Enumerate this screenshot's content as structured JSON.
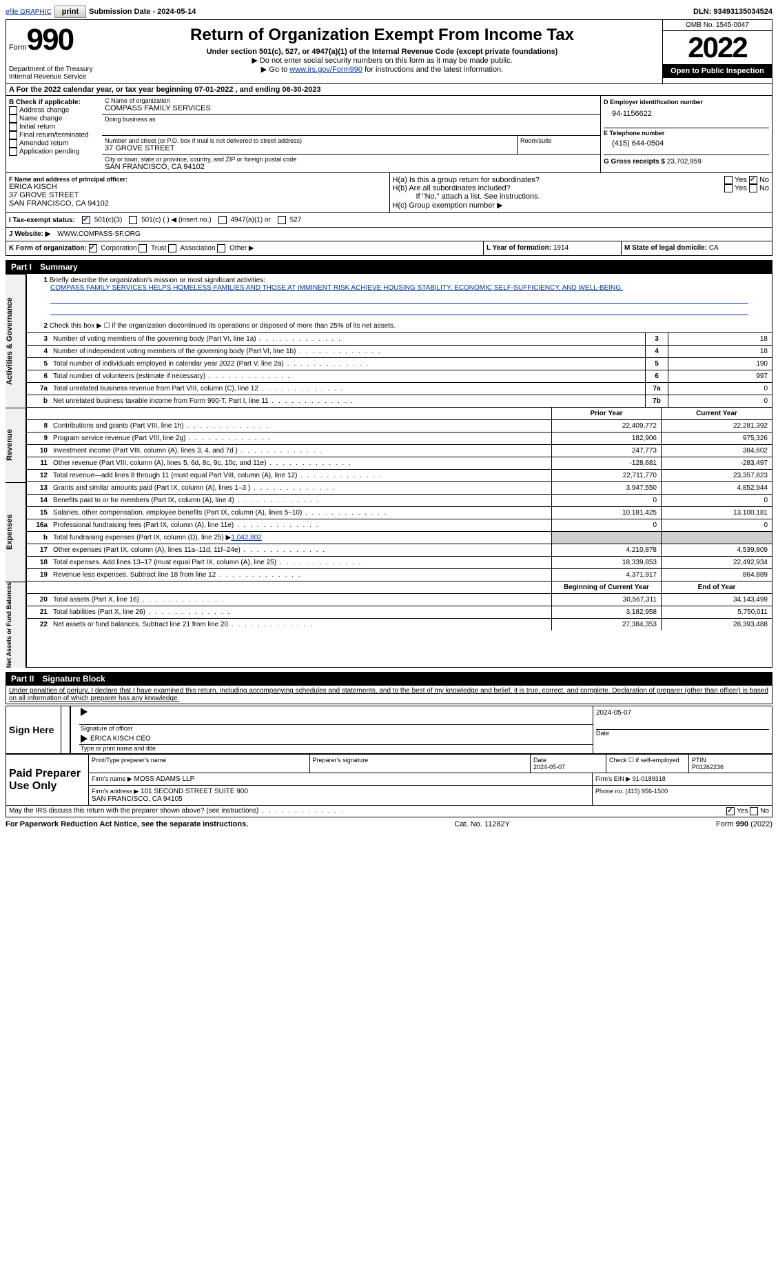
{
  "topbar": {
    "efile": "efile GRAPHIC",
    "print": "print",
    "subDate": "Submission Date - 2024-05-14",
    "dln": "DLN: 93493135034524"
  },
  "hdr": {
    "formWord": "Form",
    "formNum": "990",
    "dept": "Department of the Treasury\nInternal Revenue Service",
    "title": "Return of Organization Exempt From Income Tax",
    "sub": "Under section 501(c), 527, or 4947(a)(1) of the Internal Revenue Code (except private foundations)",
    "note1": "▶ Do not enter social security numbers on this form as it may be made public.",
    "note2": "▶ Go to ",
    "note2link": "www.irs.gov/Form990",
    "note2b": " for instructions and the latest information.",
    "omb": "OMB No. 1545-0047",
    "year": "2022",
    "open": "Open to Public Inspection"
  },
  "A": {
    "text": "A For the 2022 calendar year, or tax year beginning 07-01-2022     , and ending 06-30-2023"
  },
  "B": {
    "title": "B Check if applicable:",
    "items": [
      "Address change",
      "Name change",
      "Initial return",
      "Final return/terminated",
      "Amended return",
      "Application pending"
    ]
  },
  "C": {
    "nameLbl": "C Name of organization",
    "name": "COMPASS FAMILY SERVICES",
    "dbaLbl": "Doing business as",
    "dba": "",
    "addrLbl": "Number and street (or P.O. box if mail is not delivered to street address)",
    "addr": "37 GROVE STREET",
    "roomLbl": "Room/suite",
    "room": "",
    "cityLbl": "City or town, state or province, country, and ZIP or foreign postal code",
    "city": "SAN FRANCISCO, CA  94102"
  },
  "D": {
    "lbl": "D Employer identification number",
    "val": "94-1156622"
  },
  "E": {
    "lbl": "E Telephone number",
    "val": "(415) 644-0504"
  },
  "G": {
    "lbl": "G Gross receipts $",
    "val": "23,702,959"
  },
  "F": {
    "lbl": "F  Name and address of principal officer:",
    "name": "ERICA KISCH",
    "addr": "37 GROVE STREET",
    "city": "SAN FRANCISCO, CA  94102"
  },
  "H": {
    "a": "H(a)  Is this a group return for subordinates?",
    "aNo": true,
    "b": "H(b)  Are all subordinates included?",
    "bnote": "If \"No,\" attach a list. See instructions.",
    "c": "H(c)  Group exemption number ▶"
  },
  "I": {
    "lbl": "I    Tax-exempt status:",
    "c1": "501(c)(3)",
    "c2": "501(c) (   ) ◀ (insert no.)",
    "c3": "4947(a)(1) or",
    "c4": "527"
  },
  "J": {
    "lbl": "J    Website: ▶",
    "val": "WWW.COMPASS-SF.ORG"
  },
  "K": {
    "lbl": "K Form of organization:",
    "c1": "Corporation",
    "c2": "Trust",
    "c3": "Association",
    "c4": "Other ▶"
  },
  "L": {
    "lbl": "L Year of formation:",
    "val": "1914"
  },
  "M": {
    "lbl": "M State of legal domicile:",
    "val": "CA"
  },
  "partI": {
    "label": "Part I",
    "title": "Summary"
  },
  "p1": {
    "l1lbl": "Briefly describe the organization's mission or most significant activities:",
    "l1val": "COMPASS FAMILY SERVICES HELPS HOMELESS FAMILIES AND THOSE AT IMMINENT RISK ACHIEVE HOUSING STABILITY, ECONOMIC SELF-SUFFICIENCY, AND WELL-BEING.",
    "l2": "Check this box ▶ ☐  if the organization discontinued its operations or disposed of more than 25% of its net assets.",
    "rows": [
      {
        "n": "3",
        "t": "Number of voting members of the governing body (Part VI, line 1a)",
        "b": "3",
        "v": "18"
      },
      {
        "n": "4",
        "t": "Number of independent voting members of the governing body (Part VI, line 1b)",
        "b": "4",
        "v": "18"
      },
      {
        "n": "5",
        "t": "Total number of individuals employed in calendar year 2022 (Part V, line 2a)",
        "b": "5",
        "v": "190"
      },
      {
        "n": "6",
        "t": "Total number of volunteers (estimate if necessary)",
        "b": "6",
        "v": "997"
      },
      {
        "n": "7a",
        "t": "Total unrelated business revenue from Part VIII, column (C), line 12",
        "b": "7a",
        "v": "0"
      },
      {
        "n": "b",
        "t": "Net unrelated business taxable income from Form 990-T, Part I, line 11",
        "b": "7b",
        "v": "0"
      }
    ],
    "hdrPrior": "Prior Year",
    "hdrCurr": "Current Year",
    "rev": [
      {
        "n": "8",
        "t": "Contributions and grants (Part VIII, line 1h)",
        "p": "22,409,772",
        "c": "22,281,392"
      },
      {
        "n": "9",
        "t": "Program service revenue (Part VIII, line 2g)",
        "p": "182,906",
        "c": "975,326"
      },
      {
        "n": "10",
        "t": "Investment income (Part VIII, column (A), lines 3, 4, and 7d )",
        "p": "247,773",
        "c": "384,602"
      },
      {
        "n": "11",
        "t": "Other revenue (Part VIII, column (A), lines 5, 6d, 8c, 9c, 10c, and 11e)",
        "p": "-128,681",
        "c": "-283,497"
      },
      {
        "n": "12",
        "t": "Total revenue—add lines 8 through 11 (must equal Part VIII, column (A), line 12)",
        "p": "22,711,770",
        "c": "23,357,823"
      }
    ],
    "exp": [
      {
        "n": "13",
        "t": "Grants and similar amounts paid (Part IX, column (A), lines 1–3 )",
        "p": "3,947,550",
        "c": "4,852,944"
      },
      {
        "n": "14",
        "t": "Benefits paid to or for members (Part IX, column (A), line 4)",
        "p": "0",
        "c": "0"
      },
      {
        "n": "15",
        "t": "Salaries, other compensation, employee benefits (Part IX, column (A), lines 5–10)",
        "p": "10,181,425",
        "c": "13,100,181"
      },
      {
        "n": "16a",
        "t": "Professional fundraising fees (Part IX, column (A), line 11e)",
        "p": "0",
        "c": "0"
      },
      {
        "n": "b",
        "t": "Total fundraising expenses (Part IX, column (D), line 25) ▶",
        "p": "grey",
        "c": "grey",
        "extra": "1,042,802"
      },
      {
        "n": "17",
        "t": "Other expenses (Part IX, column (A), lines 11a–11d, 11f–24e)",
        "p": "4,210,878",
        "c": "4,539,809"
      },
      {
        "n": "18",
        "t": "Total expenses. Add lines 13–17 (must equal Part IX, column (A), line 25)",
        "p": "18,339,853",
        "c": "22,492,934"
      },
      {
        "n": "19",
        "t": "Revenue less expenses. Subtract line 18 from line 12",
        "p": "4,371,917",
        "c": "864,889"
      }
    ],
    "hdrBeg": "Beginning of Current Year",
    "hdrEnd": "End of Year",
    "net": [
      {
        "n": "20",
        "t": "Total assets (Part X, line 16)",
        "p": "30,567,311",
        "c": "34,143,499"
      },
      {
        "n": "21",
        "t": "Total liabilities (Part X, line 26)",
        "p": "3,182,958",
        "c": "5,750,011"
      },
      {
        "n": "22",
        "t": "Net assets or fund balances. Subtract line 21 from line 20",
        "p": "27,384,353",
        "c": "28,393,488"
      }
    ],
    "tabs": [
      "Activities & Governance",
      "Revenue",
      "Expenses",
      "Net Assets or Fund Balances"
    ]
  },
  "partII": {
    "label": "Part II",
    "title": "Signature Block"
  },
  "perjury": "Under penalties of perjury, I declare that I have examined this return, including accompanying schedules and statements, and to the best of my knowledge and belief, it is true, correct, and complete. Declaration of preparer (other than officer) is based on all information of which preparer has any knowledge.",
  "sign": {
    "here": "Sign Here",
    "sigLbl": "Signature of officer",
    "date": "2024-05-07",
    "nameLbl": "Type or print name and title",
    "name": "ERICA KISCH  CEO",
    "dateLbl": "Date"
  },
  "prep": {
    "title": "Paid Preparer Use Only",
    "r1": [
      "Print/Type preparer's name",
      "Preparer's signature",
      "Date\n2024-05-07",
      "Check ☐ if self-employed",
      "PTIN\nP01262236"
    ],
    "r2l": "Firm's name     ▶",
    "r2v": "MOSS ADAMS LLP",
    "r2r": "Firm's EIN ▶ 91-0189318",
    "r3l": "Firm's address ▶",
    "r3v": "101 SECOND STREET SUITE 900\nSAN FRANCISCO, CA  94105",
    "r3r": "Phone no. (415) 956-1500"
  },
  "discuss": "May the IRS discuss this return with the preparer shown above? (see instructions)",
  "foot": {
    "l": "For Paperwork Reduction Act Notice, see the separate instructions.",
    "m": "Cat. No. 11282Y",
    "r": "Form 990 (2022)"
  }
}
